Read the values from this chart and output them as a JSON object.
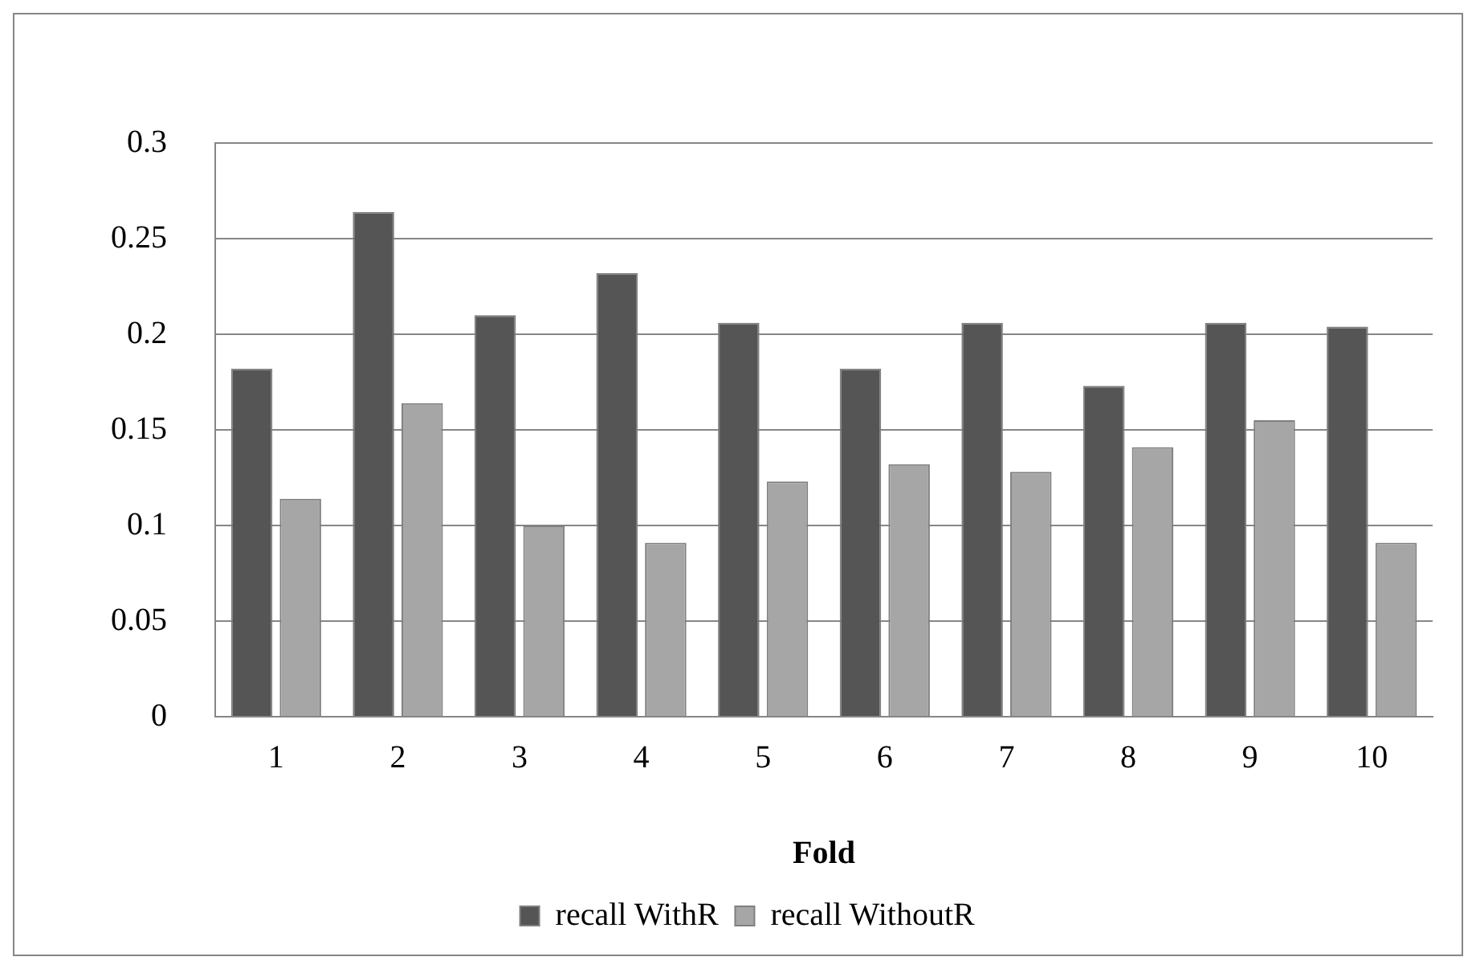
{
  "chart_data": {
    "type": "bar",
    "xlabel": "Fold",
    "categories": [
      "1",
      "2",
      "3",
      "4",
      "5",
      "6",
      "7",
      "8",
      "9",
      "10"
    ],
    "series": [
      {
        "name": "recall WithR",
        "color": "#555555",
        "values": [
          0.182,
          0.264,
          0.21,
          0.232,
          0.206,
          0.182,
          0.206,
          0.173,
          0.206,
          0.204
        ]
      },
      {
        "name": "recall WithoutR",
        "color": "#a6a6a6",
        "values": [
          0.114,
          0.164,
          0.1,
          0.091,
          0.123,
          0.132,
          0.128,
          0.141,
          0.155,
          0.091
        ]
      }
    ],
    "ylim": [
      0,
      0.3
    ],
    "yticks": [
      0,
      0.05,
      0.1,
      0.15,
      0.2,
      0.25,
      0.3
    ],
    "grid": "y",
    "legend": "bottom"
  }
}
